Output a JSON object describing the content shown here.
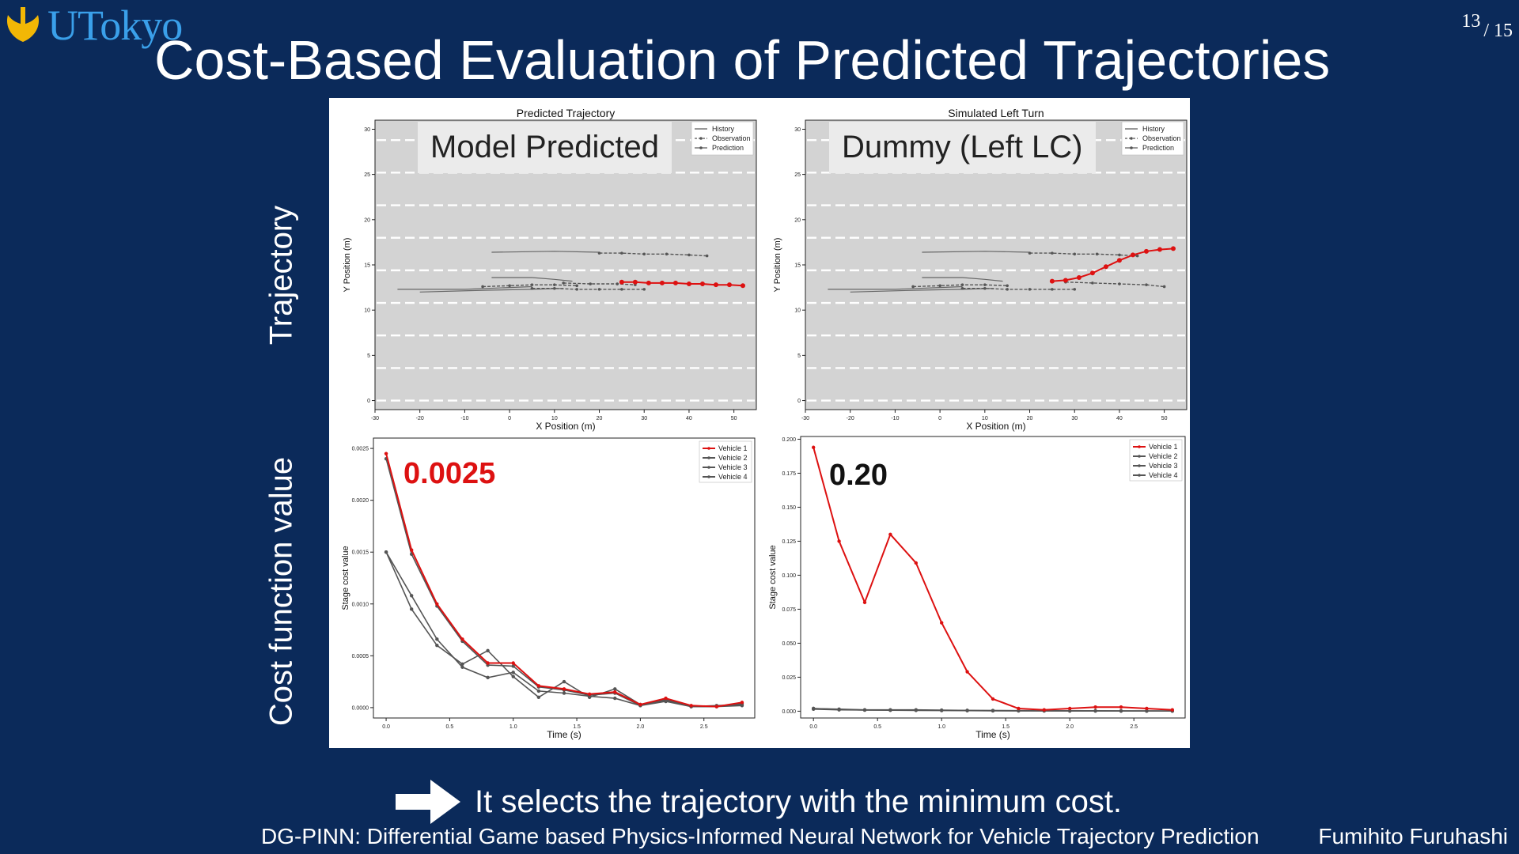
{
  "header": {
    "logo_text": "UTokyo",
    "page_current": "13",
    "page_total": "/ 15",
    "title": "Cost-Based Evaluation of Predicted Trajectories"
  },
  "row_labels": {
    "trajectory": "Trajectory",
    "cost": "Cost function value"
  },
  "overlays": {
    "model_label": "Model Predicted",
    "dummy_label": "Dummy (Left LC)",
    "model_cost": "0.0025",
    "dummy_cost": "0.20"
  },
  "conclusion": "It selects the trajectory with the minimum cost.",
  "footer": {
    "paper": "DG-PINN: Differential Game based Physics-Informed Neural Network for Vehicle Trajectory Prediction",
    "author": "Fumihito Furuhashi"
  },
  "colors": {
    "background": "#0b2a5a",
    "highlight": "#dd1111",
    "series_gray": "#555555",
    "plot_bg": "#d3d3d3",
    "logo_blue": "#3aa0ea",
    "logo_yellow": "#f2b705"
  },
  "chart_data": [
    {
      "type": "line",
      "panel": "traj_model",
      "title": "Predicted Trajectory",
      "xlabel": "X Position (m)",
      "ylabel": "Y Position (m)",
      "xlim": [
        -30,
        55
      ],
      "ylim": [
        -1,
        31
      ],
      "xticks": [
        -30,
        -20,
        -10,
        0,
        10,
        20,
        30,
        40,
        50
      ],
      "yticks": [
        0,
        5,
        10,
        15,
        20,
        25,
        30
      ],
      "lane_lines": [
        0,
        3.6,
        7.2,
        10.8,
        14.4,
        18,
        21.6,
        25.2,
        28.8
      ],
      "legend": [
        "History",
        "Observation",
        "Prediction"
      ],
      "series": [
        {
          "name": "History",
          "style": "history",
          "x": [
            -25,
            -10,
            0,
            5
          ],
          "y": [
            12.3,
            12.3,
            12.5,
            12.6
          ]
        },
        {
          "name": "History",
          "style": "history",
          "x": [
            -20,
            -5,
            5,
            12
          ],
          "y": [
            12.0,
            12.2,
            12.3,
            12.4
          ]
        },
        {
          "name": "History",
          "style": "history",
          "x": [
            -4,
            5,
            10,
            14
          ],
          "y": [
            13.6,
            13.6,
            13.4,
            13.2
          ]
        },
        {
          "name": "History",
          "style": "history",
          "x": [
            -4,
            10,
            20
          ],
          "y": [
            16.4,
            16.5,
            16.4
          ]
        },
        {
          "name": "Observation",
          "style": "observation",
          "x": [
            -6,
            0,
            5,
            10,
            15
          ],
          "y": [
            12.6,
            12.7,
            12.8,
            12.8,
            12.7
          ]
        },
        {
          "name": "Observation",
          "style": "observation",
          "x": [
            5,
            10,
            15,
            20,
            25,
            30
          ],
          "y": [
            12.4,
            12.4,
            12.3,
            12.3,
            12.3,
            12.3
          ]
        },
        {
          "name": "Observation",
          "style": "observation",
          "x": [
            12,
            18,
            24,
            28
          ],
          "y": [
            13.0,
            12.9,
            12.9,
            12.8
          ]
        },
        {
          "name": "Observation",
          "style": "observation",
          "x": [
            20,
            25,
            30,
            35,
            40,
            44
          ],
          "y": [
            16.3,
            16.3,
            16.2,
            16.2,
            16.1,
            16.0
          ]
        },
        {
          "name": "Prediction",
          "style": "prediction_red",
          "x": [
            25,
            28,
            31,
            34,
            37,
            40,
            43,
            46,
            49,
            52
          ],
          "y": [
            13.1,
            13.1,
            13.0,
            13.0,
            13.0,
            12.9,
            12.9,
            12.8,
            12.8,
            12.7
          ]
        }
      ]
    },
    {
      "type": "line",
      "panel": "traj_dummy",
      "title": "Simulated Left Turn",
      "xlabel": "X Position (m)",
      "ylabel": "Y Position (m)",
      "xlim": [
        -30,
        55
      ],
      "ylim": [
        -1,
        31
      ],
      "xticks": [
        -30,
        -20,
        -10,
        0,
        10,
        20,
        30,
        40,
        50
      ],
      "yticks": [
        0,
        5,
        10,
        15,
        20,
        25,
        30
      ],
      "lane_lines": [
        0,
        3.6,
        7.2,
        10.8,
        14.4,
        18,
        21.6,
        25.2,
        28.8
      ],
      "legend": [
        "History",
        "Observation",
        "Prediction"
      ],
      "series": [
        {
          "name": "History",
          "style": "history",
          "x": [
            -25,
            -10,
            0,
            5
          ],
          "y": [
            12.3,
            12.3,
            12.5,
            12.6
          ]
        },
        {
          "name": "History",
          "style": "history",
          "x": [
            -20,
            -5,
            5,
            12
          ],
          "y": [
            12.0,
            12.2,
            12.3,
            12.4
          ]
        },
        {
          "name": "History",
          "style": "history",
          "x": [
            -4,
            5,
            10,
            14
          ],
          "y": [
            13.6,
            13.6,
            13.4,
            13.2
          ]
        },
        {
          "name": "History",
          "style": "history",
          "x": [
            -4,
            10,
            20
          ],
          "y": [
            16.4,
            16.5,
            16.4
          ]
        },
        {
          "name": "Observation",
          "style": "observation",
          "x": [
            -6,
            0,
            5,
            10,
            15
          ],
          "y": [
            12.6,
            12.7,
            12.8,
            12.8,
            12.7
          ]
        },
        {
          "name": "Observation",
          "style": "observation",
          "x": [
            5,
            10,
            15,
            20,
            25,
            30
          ],
          "y": [
            12.4,
            12.4,
            12.3,
            12.3,
            12.3,
            12.3
          ]
        },
        {
          "name": "Observation",
          "style": "observation",
          "x": [
            28,
            34,
            40,
            46,
            50
          ],
          "y": [
            13.1,
            13.0,
            12.9,
            12.8,
            12.6
          ]
        },
        {
          "name": "Observation",
          "style": "observation",
          "x": [
            20,
            25,
            30,
            35,
            40,
            44
          ],
          "y": [
            16.3,
            16.3,
            16.2,
            16.2,
            16.1,
            16.0
          ]
        },
        {
          "name": "Prediction",
          "style": "prediction_red",
          "x": [
            25,
            28,
            31,
            34,
            37,
            40,
            43,
            46,
            49,
            52
          ],
          "y": [
            13.2,
            13.3,
            13.6,
            14.1,
            14.8,
            15.5,
            16.1,
            16.5,
            16.7,
            16.8
          ]
        }
      ]
    },
    {
      "type": "line",
      "panel": "cost_model",
      "xlabel": "Time (s)",
      "ylabel": "Stage cost value",
      "xlim": [
        -0.1,
        2.9
      ],
      "ylim": [
        -0.0001,
        0.0026
      ],
      "xticks": [
        0.0,
        0.5,
        1.0,
        1.5,
        2.0,
        2.5
      ],
      "xtick_labels": [
        "0.0",
        "0.5",
        "1.0",
        "1.5",
        "2.0",
        "2.5"
      ],
      "yticks": [
        0.0,
        0.0005,
        0.001,
        0.0015,
        0.002,
        0.0025
      ],
      "ytick_labels": [
        "0.0000",
        "0.0005",
        "0.0010",
        "0.0015",
        "0.0020",
        "0.0025"
      ],
      "legend": [
        "Vehicle 1",
        "Vehicle 2",
        "Vehicle 3",
        "Vehicle 4"
      ],
      "x": [
        0.0,
        0.2,
        0.4,
        0.6,
        0.8,
        1.0,
        1.2,
        1.4,
        1.6,
        1.8,
        2.0,
        2.2,
        2.4,
        2.6,
        2.8
      ],
      "series": [
        {
          "name": "Vehicle 1",
          "values": [
            0.00245,
            0.00152,
            0.001,
            0.00066,
            0.00043,
            0.00043,
            0.00021,
            0.00018,
            0.00013,
            0.00015,
            3e-05,
            9e-05,
            2e-05,
            1e-05,
            5e-05
          ]
        },
        {
          "name": "Vehicle 2",
          "values": [
            0.0024,
            0.00148,
            0.00098,
            0.00064,
            0.00041,
            0.0004,
            0.0002,
            0.00017,
            0.00012,
            0.00014,
            2e-05,
            8e-05,
            1e-05,
            1e-05,
            4e-05
          ]
        },
        {
          "name": "Vehicle 3",
          "values": [
            0.0015,
            0.00095,
            0.0006,
            0.00042,
            0.00055,
            0.0003,
            0.0001,
            0.00025,
            0.0001,
            0.00018,
            3e-05,
            7e-05,
            1e-05,
            2e-05,
            3e-05
          ]
        },
        {
          "name": "Vehicle 4",
          "values": [
            0.0015,
            0.00108,
            0.00066,
            0.00039,
            0.00029,
            0.00034,
            0.00016,
            0.00014,
            0.00011,
            9e-05,
            2e-05,
            6e-05,
            1e-05,
            1e-05,
            2e-05
          ]
        }
      ]
    },
    {
      "type": "line",
      "panel": "cost_dummy",
      "xlabel": "Time (s)",
      "ylabel": "Stage cost value",
      "xlim": [
        -0.1,
        2.9
      ],
      "ylim": [
        -0.005,
        0.202
      ],
      "xticks": [
        0.0,
        0.5,
        1.0,
        1.5,
        2.0,
        2.5
      ],
      "xtick_labels": [
        "0.0",
        "0.5",
        "1.0",
        "1.5",
        "2.0",
        "2.5"
      ],
      "yticks": [
        0.0,
        0.025,
        0.05,
        0.075,
        0.1,
        0.125,
        0.15,
        0.175,
        0.2
      ],
      "ytick_labels": [
        "0.000",
        "0.025",
        "0.050",
        "0.075",
        "0.100",
        "0.125",
        "0.150",
        "0.175",
        "0.200"
      ],
      "legend": [
        "Vehicle 1",
        "Vehicle 2",
        "Vehicle 3",
        "Vehicle 4"
      ],
      "x": [
        0.0,
        0.2,
        0.4,
        0.6,
        0.8,
        1.0,
        1.2,
        1.4,
        1.6,
        1.8,
        2.0,
        2.2,
        2.4,
        2.6,
        2.8
      ],
      "series": [
        {
          "name": "Vehicle 1",
          "values": [
            0.194,
            0.125,
            0.08,
            0.13,
            0.109,
            0.065,
            0.029,
            0.009,
            0.002,
            0.001,
            0.002,
            0.003,
            0.003,
            0.002,
            0.001
          ]
        },
        {
          "name": "Vehicle 2",
          "values": [
            0.002,
            0.0015,
            0.001,
            0.001,
            0.001,
            0.0008,
            0.0006,
            0.0005,
            0.0004,
            0.0004,
            0.0003,
            0.0003,
            0.0002,
            0.0002,
            0.0002
          ]
        },
        {
          "name": "Vehicle 3",
          "values": [
            0.002,
            0.0013,
            0.0009,
            0.0008,
            0.0007,
            0.0006,
            0.0005,
            0.0004,
            0.0003,
            0.0003,
            0.0002,
            0.0002,
            0.0002,
            0.0001,
            0.0001
          ]
        },
        {
          "name": "Vehicle 4",
          "values": [
            0.0015,
            0.001,
            0.0008,
            0.0007,
            0.0006,
            0.0005,
            0.0004,
            0.0003,
            0.0003,
            0.0002,
            0.0002,
            0.0002,
            0.0001,
            0.0001,
            0.0001
          ]
        }
      ]
    }
  ]
}
